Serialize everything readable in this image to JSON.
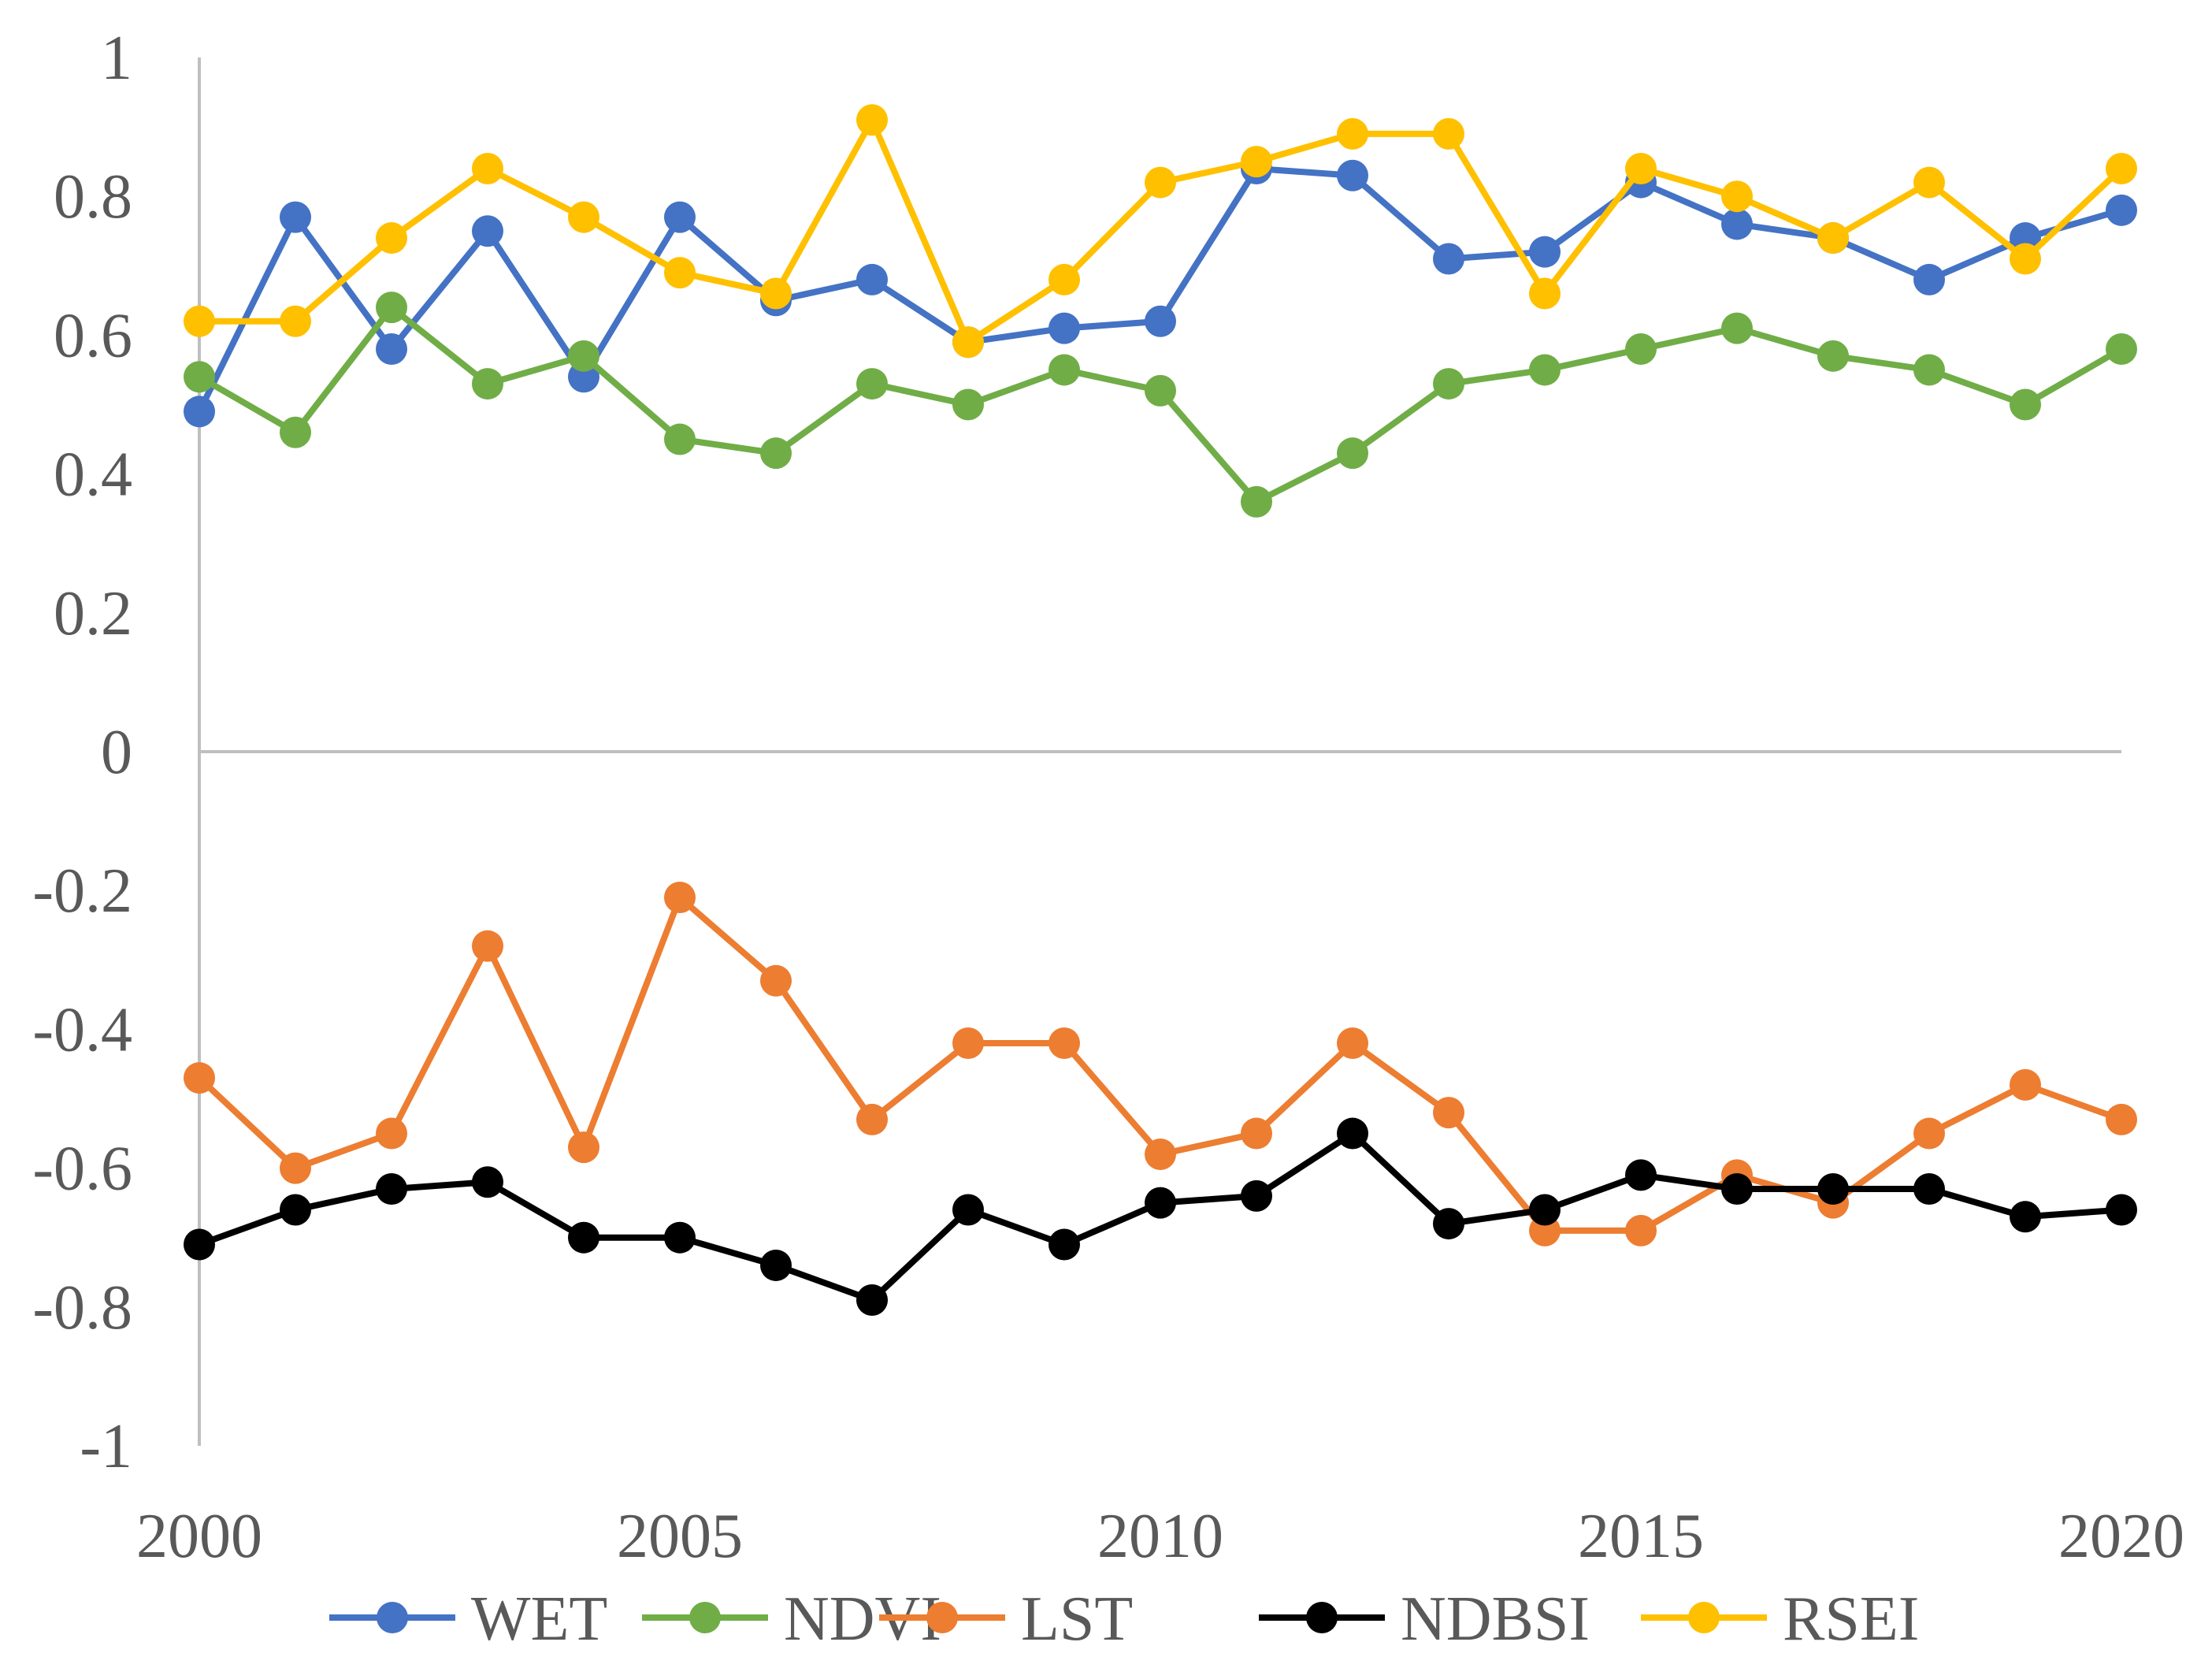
{
  "chart_data": {
    "type": "line",
    "title": "",
    "xlabel": "",
    "ylabel": "",
    "x": [
      2000,
      2001,
      2002,
      2003,
      2004,
      2005,
      2006,
      2007,
      2008,
      2009,
      2010,
      2011,
      2012,
      2013,
      2014,
      2015,
      2016,
      2017,
      2018,
      2019,
      2020
    ],
    "xlim": [
      2000,
      2020
    ],
    "ylim": [
      -1,
      1
    ],
    "x_ticks": [
      2000,
      2005,
      2010,
      2015,
      2020
    ],
    "x_tick_labels": [
      "2000",
      "2005",
      "2010",
      "2015",
      "2020"
    ],
    "y_ticks": [
      1,
      0.8,
      0.6,
      0.4,
      0.2,
      0,
      -0.2,
      -0.4,
      -0.6,
      -0.8,
      -1
    ],
    "y_tick_labels": [
      "1",
      "0.8",
      "0.6",
      "0.4",
      "0.2",
      "0",
      "-0.2",
      "-0.4",
      "-0.6",
      "-0.8",
      "-1"
    ],
    "legend_position": "bottom",
    "series": [
      {
        "name": "WET",
        "color": "#4472c4",
        "values": [
          0.49,
          0.77,
          0.58,
          0.75,
          0.54,
          0.77,
          0.65,
          0.68,
          0.59,
          0.61,
          0.62,
          0.84,
          0.83,
          0.71,
          0.72,
          0.82,
          0.76,
          0.74,
          0.68,
          0.74,
          0.78
        ]
      },
      {
        "name": "NDVI",
        "color": "#70ad47",
        "values": [
          0.54,
          0.46,
          0.64,
          0.53,
          0.57,
          0.45,
          0.43,
          0.53,
          0.5,
          0.55,
          0.52,
          0.36,
          0.43,
          0.53,
          0.55,
          0.58,
          0.61,
          0.57,
          0.55,
          0.5,
          0.58
        ]
      },
      {
        "name": "LST",
        "color": "#ed7d31",
        "values": [
          -0.47,
          -0.6,
          -0.55,
          -0.28,
          -0.57,
          -0.21,
          -0.33,
          -0.53,
          -0.42,
          -0.42,
          -0.58,
          -0.55,
          -0.42,
          -0.52,
          -0.69,
          -0.69,
          -0.61,
          -0.65,
          -0.55,
          -0.48,
          -0.53
        ]
      },
      {
        "name": "NDBSI",
        "color": "#000000",
        "values": [
          -0.71,
          -0.66,
          -0.63,
          -0.62,
          -0.7,
          -0.7,
          -0.74,
          -0.79,
          -0.66,
          -0.71,
          -0.65,
          -0.64,
          -0.55,
          -0.68,
          -0.66,
          -0.61,
          -0.63,
          -0.63,
          -0.63,
          -0.67,
          -0.66
        ]
      },
      {
        "name": "RSEI",
        "color": "#ffc000",
        "values": [
          0.62,
          0.62,
          0.74,
          0.84,
          0.77,
          0.69,
          0.66,
          0.91,
          0.59,
          0.68,
          0.82,
          0.85,
          0.89,
          0.89,
          0.66,
          0.84,
          0.8,
          0.74,
          0.82,
          0.71,
          0.84
        ]
      }
    ]
  }
}
